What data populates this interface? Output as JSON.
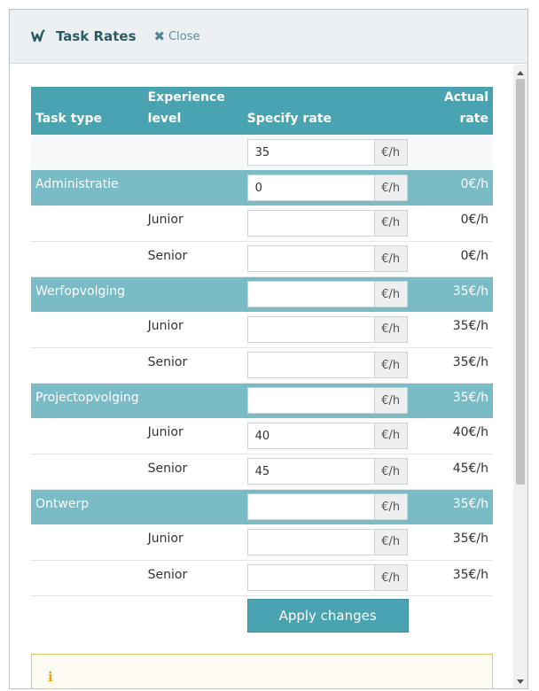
{
  "header": {
    "title": "Task Rates",
    "close_label": "Close"
  },
  "table": {
    "columns": [
      "Task type",
      "Experience level",
      "Specify rate",
      "Actual rate"
    ],
    "unit": "€/h",
    "default_rate": "35",
    "rows": [
      {
        "kind": "cat",
        "type": "Administratie",
        "level": "",
        "rate": "0",
        "actual": "0€/h"
      },
      {
        "kind": "sub",
        "type": "",
        "level": "Junior",
        "rate": "",
        "actual": "0€/h"
      },
      {
        "kind": "sub",
        "type": "",
        "level": "Senior",
        "rate": "",
        "actual": "0€/h"
      },
      {
        "kind": "cat",
        "type": "Werfopvolging",
        "level": "",
        "rate": "",
        "actual": "35€/h"
      },
      {
        "kind": "sub",
        "type": "",
        "level": "Junior",
        "rate": "",
        "actual": "35€/h"
      },
      {
        "kind": "sub",
        "type": "",
        "level": "Senior",
        "rate": "",
        "actual": "35€/h"
      },
      {
        "kind": "cat",
        "type": "Projectopvolging",
        "level": "",
        "rate": "",
        "actual": "35€/h"
      },
      {
        "kind": "sub",
        "type": "",
        "level": "Junior",
        "rate": "40",
        "actual": "40€/h"
      },
      {
        "kind": "sub",
        "type": "",
        "level": "Senior",
        "rate": "45",
        "actual": "45€/h"
      },
      {
        "kind": "cat",
        "type": "Ontwerp",
        "level": "",
        "rate": "",
        "actual": "35€/h"
      },
      {
        "kind": "sub",
        "type": "",
        "level": "Junior",
        "rate": "",
        "actual": "35€/h"
      },
      {
        "kind": "sub",
        "type": "",
        "level": "Senior",
        "rate": "",
        "actual": "35€/h"
      }
    ]
  },
  "apply_label": "Apply changes",
  "info_icon": "info-icon",
  "colors": {
    "header_bg": "#4aa3b0",
    "category_bg": "#79bcc6",
    "accent": "#2a5a66",
    "info_border": "#e5c765"
  }
}
